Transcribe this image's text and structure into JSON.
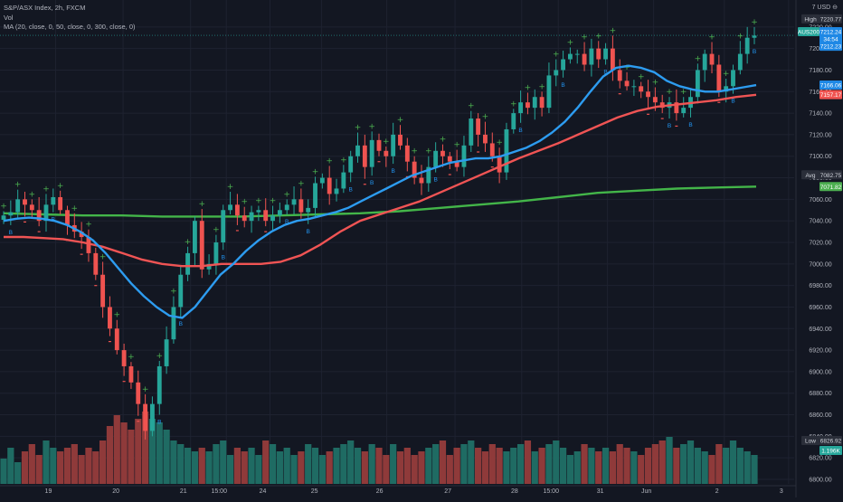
{
  "header": {
    "title": "S&P/ASX Index, 2h, FXCM",
    "vol_label": "Vol",
    "ma_label": "MA (20, close, 0, 50, close, 0, 300, close, 0)",
    "currency": "7 USD ⊖"
  },
  "colors": {
    "background": "#131722",
    "grid": "#1e2230",
    "up": "#26a69a",
    "down": "#ef5350",
    "vol_up": "#1f6b63",
    "vol_down": "#8f3a3a",
    "ma20": "#2d9cf0",
    "ma50": "#f05454",
    "ma300": "#43b549",
    "marker_plus": "#4caf50",
    "marker_b": "#2196f3",
    "marker_dash": "#ef5350",
    "text": "#b2b5be"
  },
  "price_labels": {
    "high_label": "High",
    "high_value": "7220.77",
    "symbol_label": "AUS200",
    "symbol_value": "7212.24",
    "countdown": "34:54",
    "last_value": "7212.23",
    "ma20_value": "7166.06",
    "ma50_value": "7157.17",
    "avg_label": "Avg",
    "avg_value": "7082.75",
    "ma300_value": "7071.82",
    "low_label": "Low",
    "low_value": "6826.92",
    "vol_value": "1.196K"
  },
  "chart_data": {
    "type": "candlestick",
    "title": "S&P/ASX Index, 2h, FXCM",
    "y_ticks": [
      6800,
      6820,
      6840,
      6860,
      6880,
      6900,
      6920,
      6940,
      6960,
      6980,
      7000,
      7020,
      7040,
      7060,
      7080,
      7100,
      7120,
      7140,
      7160,
      7180,
      7200,
      7220
    ],
    "x_ticks": [
      {
        "label": "19",
        "t": 0.07
      },
      {
        "label": "20",
        "t": 0.155
      },
      {
        "label": "21",
        "t": 0.24
      },
      {
        "label": "15:00",
        "t": 0.285
      },
      {
        "label": "24",
        "t": 0.34
      },
      {
        "label": "25",
        "t": 0.405
      },
      {
        "label": "26",
        "t": 0.487
      },
      {
        "label": "27",
        "t": 0.573
      },
      {
        "label": "28",
        "t": 0.657
      },
      {
        "label": "15:00",
        "t": 0.703
      },
      {
        "label": "31",
        "t": 0.765
      },
      {
        "label": "Jun",
        "t": 0.823
      },
      {
        "label": "2",
        "t": 0.912
      },
      {
        "label": "3",
        "t": 0.993
      }
    ],
    "candles_close": [
      7045,
      7048,
      7060,
      7055,
      7050,
      7040,
      7055,
      7062,
      7050,
      7036,
      7030,
      7025,
      7010,
      6990,
      6960,
      6940,
      6920,
      6905,
      6890,
      6870,
      6845,
      6870,
      6905,
      6930,
      6960,
      6990,
      7010,
      7040,
      6995,
      7000,
      7020,
      7050,
      7055,
      7045,
      7040,
      7048,
      7050,
      7040,
      7045,
      7050,
      7055,
      7060,
      7048,
      7052,
      7075,
      7080,
      7065,
      7070,
      7085,
      7100,
      7110,
      7090,
      7115,
      7105,
      7100,
      7120,
      7110,
      7095,
      7080,
      7075,
      7090,
      7105,
      7100,
      7095,
      7090,
      7110,
      7135,
      7120,
      7112,
      7100,
      7085,
      7125,
      7140,
      7150,
      7145,
      7155,
      7145,
      7175,
      7180,
      7190,
      7195,
      7195,
      7185,
      7200,
      7190,
      7200,
      7180,
      7170,
      7165,
      7165,
      7160,
      7155,
      7150,
      7145,
      7150,
      7140,
      7145,
      7155,
      7180,
      7195,
      7185,
      7160,
      7165,
      7180,
      7195,
      7210,
      7212
    ],
    "volume": [
      0.35,
      0.5,
      0.3,
      0.45,
      0.55,
      0.4,
      0.6,
      0.5,
      0.45,
      0.5,
      0.55,
      0.4,
      0.5,
      0.45,
      0.6,
      0.8,
      0.95,
      0.85,
      0.75,
      0.9,
      1.0,
      0.9,
      0.85,
      0.75,
      0.6,
      0.55,
      0.5,
      0.45,
      0.5,
      0.45,
      0.55,
      0.6,
      0.4,
      0.5,
      0.45,
      0.5,
      0.4,
      0.6,
      0.55,
      0.45,
      0.5,
      0.4,
      0.45,
      0.55,
      0.5,
      0.4,
      0.45,
      0.5,
      0.55,
      0.6,
      0.5,
      0.45,
      0.55,
      0.5,
      0.4,
      0.55,
      0.45,
      0.5,
      0.4,
      0.45,
      0.5,
      0.55,
      0.6,
      0.4,
      0.5,
      0.55,
      0.6,
      0.5,
      0.45,
      0.55,
      0.5,
      0.45,
      0.5,
      0.55,
      0.6,
      0.45,
      0.5,
      0.55,
      0.6,
      0.5,
      0.4,
      0.45,
      0.55,
      0.5,
      0.45,
      0.5,
      0.45,
      0.55,
      0.5,
      0.45,
      0.4,
      0.5,
      0.55,
      0.6,
      0.65,
      0.5,
      0.55,
      0.6,
      0.5,
      0.45,
      0.4,
      0.55,
      0.5,
      0.6,
      0.5,
      0.45,
      0.4
    ],
    "ma20_values": [
      7040,
      7042,
      7043,
      7042,
      7040,
      7036,
      7030,
      7022,
      7010,
      6996,
      6982,
      6970,
      6960,
      6952,
      6950,
      6960,
      6975,
      6990,
      7000,
      7012,
      7022,
      7030,
      7036,
      7040,
      7042,
      7045,
      7048,
      7052,
      7058,
      7064,
      7070,
      7076,
      7082,
      7086,
      7090,
      7094,
      7096,
      7098,
      7098,
      7100,
      7104,
      7108,
      7114,
      7122,
      7132,
      7145,
      7160,
      7174,
      7182,
      7184,
      7182,
      7178,
      7170,
      7165,
      7162,
      7160,
      7160,
      7162,
      7164,
      7166
    ],
    "ma50_values": [
      7025,
      7025,
      7024,
      7023,
      7020,
      7016,
      7010,
      7004,
      7000,
      6998,
      6998,
      7000,
      7000,
      7000,
      7002,
      7008,
      7018,
      7030,
      7040,
      7046,
      7052,
      7058,
      7066,
      7074,
      7082,
      7090,
      7098,
      7105,
      7112,
      7120,
      7128,
      7136,
      7142,
      7146,
      7148,
      7150,
      7152,
      7155,
      7157
    ],
    "ma300_values": [
      7047,
      7046,
      7045,
      7045,
      7044,
      7044,
      7044,
      7045,
      7046,
      7047,
      7049,
      7052,
      7055,
      7058,
      7062,
      7066,
      7068,
      7070,
      7071,
      7071.82
    ],
    "ylim": [
      6800,
      7240
    ]
  }
}
